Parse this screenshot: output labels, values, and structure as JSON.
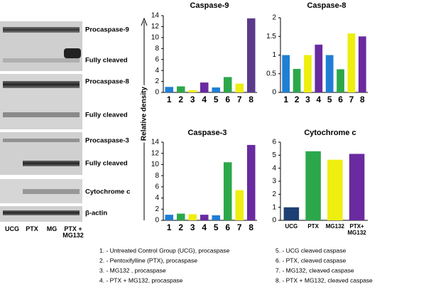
{
  "chart_data": [
    {
      "type": "bar",
      "title": "Caspase-9",
      "categories": [
        "1",
        "2",
        "3",
        "4",
        "5",
        "6",
        "7",
        "8"
      ],
      "values": [
        1,
        1.1,
        0.4,
        1.8,
        0.9,
        2.8,
        1.6,
        13.5
      ],
      "colors": [
        "#1f7fd4",
        "#2ca84a",
        "#eeee10",
        "#6a2aa0",
        "#1f7fd4",
        "#2ca84a",
        "#eeee10",
        "#5b3a8c"
      ],
      "ylim": [
        0,
        14
      ],
      "yticks": [
        0,
        2,
        4,
        6,
        8,
        10,
        12,
        14
      ]
    },
    {
      "type": "bar",
      "title": "Caspase-8",
      "categories": [
        "1",
        "2",
        "3",
        "4",
        "5",
        "6",
        "7",
        "8"
      ],
      "values": [
        1,
        0.63,
        1,
        1.28,
        1,
        0.62,
        1.58,
        1.5
      ],
      "colors": [
        "#1f7fd4",
        "#2ca84a",
        "#eeee10",
        "#6a2aa0",
        "#1f7fd4",
        "#2ca84a",
        "#eeee10",
        "#6a2aa0"
      ],
      "ylim": [
        0,
        2
      ],
      "yticks": [
        0,
        0.5,
        1,
        1.5,
        2
      ]
    },
    {
      "type": "bar",
      "title": "Caspase-3",
      "categories": [
        "1",
        "2",
        "3",
        "4",
        "5",
        "6",
        "7",
        "8"
      ],
      "values": [
        1,
        1.2,
        1.1,
        1,
        0.9,
        10.4,
        5.4,
        13.5
      ],
      "colors": [
        "#1f7fd4",
        "#2ca84a",
        "#eeee10",
        "#6a2aa0",
        "#1f7fd4",
        "#2ca84a",
        "#eeee10",
        "#6a2aa0"
      ],
      "ylim": [
        0,
        14
      ],
      "yticks": [
        0,
        2,
        4,
        6,
        8,
        10,
        12,
        14
      ]
    },
    {
      "type": "bar",
      "title": "Cytochrome c",
      "categories": [
        "UCG",
        "PTX",
        "MG132",
        "PTX+ MG132"
      ],
      "values": [
        1,
        5.3,
        4.65,
        5.1
      ],
      "colors": [
        "#1d3f72",
        "#2ca84a",
        "#eeee10",
        "#6a2aa0"
      ],
      "ylim": [
        0,
        6
      ],
      "yticks": [
        0,
        1,
        2,
        3,
        4,
        5,
        6
      ]
    }
  ],
  "axis_label": "Relative density",
  "blot": {
    "bands": [
      "Procaspase-9",
      "Fully cleaved",
      "Procaspase-8",
      "Fully cleaved",
      "Procaspase-3",
      "Fully cleaved",
      "Cytochrome c",
      "β-actin"
    ],
    "lanes": [
      "UCG",
      "PTX",
      "MG",
      "PTX + MG132"
    ]
  },
  "footnotes": [
    "1. - Untreated Control Group (UCG), procaspase",
    "2. - Pentoxifylline (PTX), procaspase",
    "3. - MG132 , procaspase",
    "4. - PTX + MG132, procaspase",
    "5. - UCG cleaved caspase",
    "6. - PTX, cleaved caspase",
    "7. - MG132, cleaved caspase",
    "8. - PTX + MG132, cleaved caspase"
  ]
}
